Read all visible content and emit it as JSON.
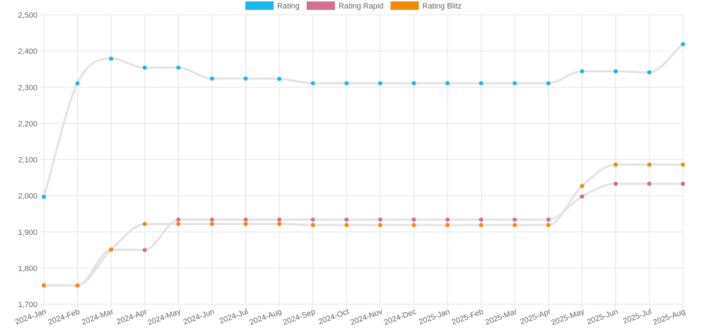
{
  "chart_data": {
    "type": "line",
    "categories": [
      "2024-Jan",
      "2024-Feb",
      "2024-Mar",
      "2024-Apr",
      "2024-May",
      "2024-Jun",
      "2024-Jul",
      "2024-Aug",
      "2024-Sep",
      "2024-Oct",
      "2024-Nov",
      "2024-Dec",
      "2025-Jan",
      "2025-Feb",
      "2025-Mar",
      "2025-Apr",
      "2025-May",
      "2025-Jun",
      "2025-Jul",
      "2025-Aug"
    ],
    "series": [
      {
        "name": "Rating",
        "color": "#1ab6ee",
        "values": [
          1997,
          2311,
          2379,
          2354,
          2354,
          2324,
          2324,
          2323,
          2311,
          2311,
          2311,
          2311,
          2311,
          2311,
          2311,
          2311,
          2344,
          2344,
          2341,
          2419
        ]
      },
      {
        "name": "Rating Rapid",
        "color": "#d46f8f",
        "values": [
          1752,
          1752,
          1851,
          1850,
          1934,
          1934,
          1934,
          1934,
          1934,
          1934,
          1934,
          1934,
          1934,
          1934,
          1934,
          1934,
          1998,
          2033,
          2033,
          2033
        ]
      },
      {
        "name": "Rating Blitz",
        "color": "#f28a0c",
        "values": [
          1752,
          1752,
          1851,
          1922,
          1922,
          1922,
          1922,
          1922,
          1919,
          1919,
          1919,
          1919,
          1919,
          1919,
          1919,
          1919,
          2027,
          2086,
          2086,
          2086
        ]
      }
    ],
    "line_color": "#e3e3e3",
    "y_ticks": [
      "2,500",
      "2,400",
      "2,300",
      "2,200",
      "2,100",
      "2,000",
      "1,900",
      "1,800",
      "1,700"
    ],
    "ylim": [
      1700,
      2500
    ],
    "grid": true,
    "legend": "top-center"
  }
}
